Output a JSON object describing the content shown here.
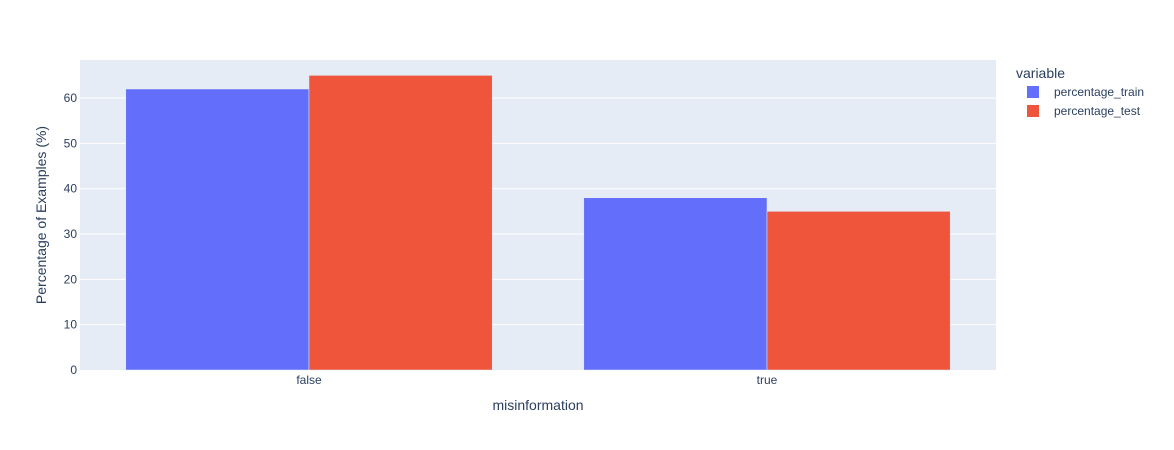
{
  "chart_data": {
    "type": "bar",
    "barmode": "group",
    "categories": [
      "false",
      "true"
    ],
    "series": [
      {
        "name": "percentage_train",
        "values": [
          62,
          38
        ],
        "color": "#636efa"
      },
      {
        "name": "percentage_test",
        "values": [
          65,
          35
        ],
        "color": "#ef553b"
      }
    ],
    "title": "",
    "xlabel": "misinformation",
    "ylabel": "Percentage of Examples (%)",
    "ylim": [
      0,
      68.4
    ],
    "yticks": [
      0,
      10,
      20,
      30,
      40,
      50,
      60
    ],
    "grid": true,
    "legend": {
      "title": "variable",
      "placement": "top-right"
    },
    "plot_background": "#e5ecf6",
    "gridline_color": "#ffffff",
    "text_color": "#2a3f5f"
  }
}
